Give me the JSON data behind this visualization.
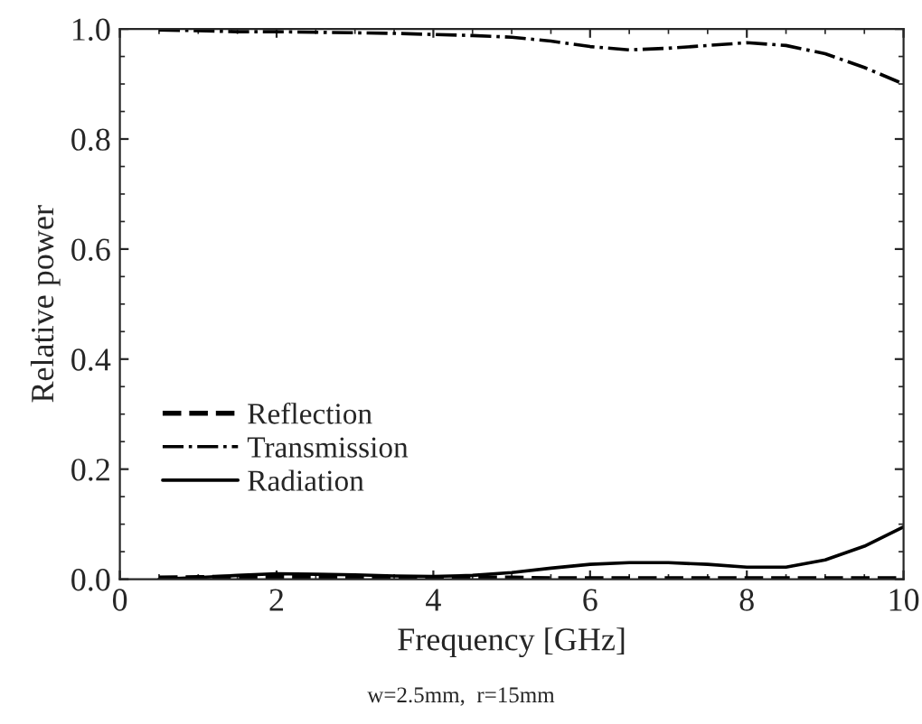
{
  "chart_data": {
    "type": "line",
    "xlabel": "Frequency [GHz]",
    "ylabel": "Relative power",
    "xlim": [
      0,
      10
    ],
    "ylim": [
      0,
      1.0
    ],
    "xticks": [
      0,
      2,
      4,
      6,
      8,
      10
    ],
    "yticks": [
      {
        "value": 0,
        "label": "0.0"
      },
      {
        "value": 0.2,
        "label": "0.2"
      },
      {
        "value": 0.4,
        "label": "0.4"
      },
      {
        "value": 0.6,
        "label": "0.6"
      },
      {
        "value": 0.8,
        "label": "0.8"
      },
      {
        "value": 1.0,
        "label": "1.0"
      }
    ],
    "x": [
      0.5,
      1,
      1.5,
      2,
      2.5,
      3,
      3.5,
      4,
      4.5,
      5,
      5.5,
      6,
      6.5,
      7,
      7.5,
      8,
      8.5,
      9,
      9.5,
      10
    ],
    "series": [
      {
        "name": "Reflection",
        "color": "#000000",
        "line_style": "dashed",
        "values": [
          0.002,
          0.003,
          0.004,
          0.005,
          0.004,
          0.003,
          0.002,
          0.002,
          0.002,
          0.002,
          0.001,
          0.001,
          0.001,
          0.001,
          0.001,
          0.001,
          0.001,
          0.001,
          0.001,
          0.001
        ]
      },
      {
        "name": "Transmission",
        "color": "#000000",
        "line_style": "dashdot",
        "values": [
          0.998,
          0.997,
          0.995,
          0.995,
          0.994,
          0.993,
          0.992,
          0.99,
          0.988,
          0.985,
          0.978,
          0.968,
          0.962,
          0.965,
          0.97,
          0.975,
          0.97,
          0.955,
          0.93,
          0.9
        ]
      },
      {
        "name": "Radiation",
        "color": "#000000",
        "line_style": "solid",
        "values": [
          0.0,
          0.003,
          0.007,
          0.01,
          0.009,
          0.008,
          0.006,
          0.005,
          0.007,
          0.012,
          0.02,
          0.027,
          0.03,
          0.03,
          0.027,
          0.022,
          0.022,
          0.035,
          0.06,
          0.095
        ]
      }
    ],
    "legend": "bottom left",
    "grid": false,
    "annotations": [
      "w=2.5mm,  r=15mm"
    ]
  }
}
